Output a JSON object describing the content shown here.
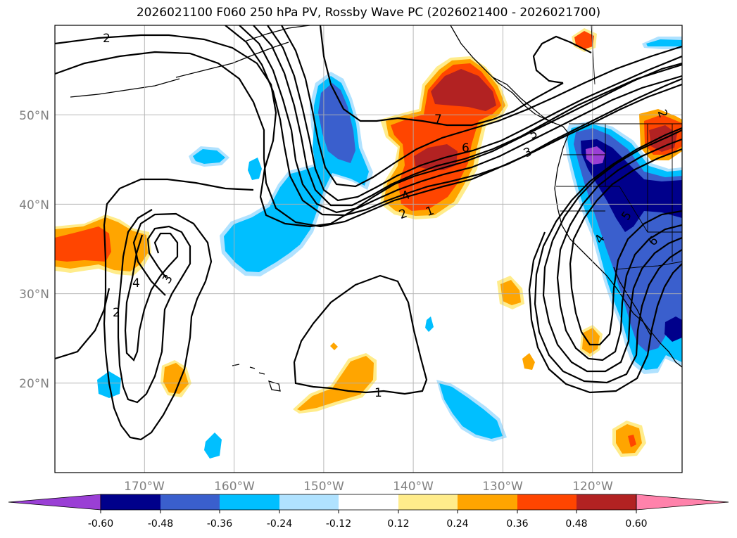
{
  "title": "2026021100 F060 250 hPa PV, Rossby Wave PC (2026021400 - 2026021700)",
  "map": {
    "projection": "PlateCarree",
    "lon_range": [
      -180,
      -110
    ],
    "lat_range": [
      10,
      60
    ],
    "lon_ticks": [
      {
        "lon": -170,
        "label": "170°W"
      },
      {
        "lon": -160,
        "label": "160°W"
      },
      {
        "lon": -150,
        "label": "150°W"
      },
      {
        "lon": -140,
        "label": "140°W"
      },
      {
        "lon": -130,
        "label": "130°W"
      },
      {
        "lon": -120,
        "label": "120°W"
      }
    ],
    "lat_ticks": [
      {
        "lat": 20,
        "label": "20°N"
      },
      {
        "lat": 30,
        "label": "30°N"
      },
      {
        "lat": 40,
        "label": "40°N"
      },
      {
        "lat": 50,
        "label": "50°N"
      }
    ],
    "gridlines": true,
    "pv_contour_labels": [
      "2",
      "2",
      "3",
      "4",
      "2",
      "1",
      "4",
      "6",
      "7",
      "5",
      "3",
      "1",
      "5",
      "4",
      "6",
      "2"
    ]
  },
  "colorbar": {
    "levels": [
      "-0.60",
      "-0.48",
      "-0.36",
      "-0.24",
      "-0.12",
      "0.12",
      "0.24",
      "0.36",
      "0.48",
      "0.60"
    ],
    "colors": {
      "under": "#9a3fd5",
      "n060": "#00008b",
      "n048": "#3a5fcd",
      "n036": "#00bfff",
      "n024": "#b0e2ff",
      "mid": "#ffffff",
      "p012": "#ffec8b",
      "p024": "#ffa500",
      "p036": "#ff4500",
      "p048": "#b22222",
      "over": "#ff82ab"
    }
  }
}
